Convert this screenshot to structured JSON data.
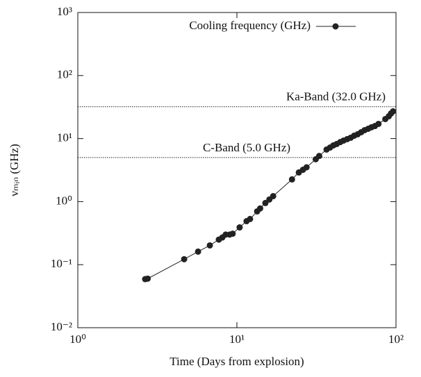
{
  "chart_data": {
    "type": "line",
    "markers": true,
    "xlabel": "Time (Days from explosion)",
    "ylabel": "νₘᵢₙ (GHz)",
    "xscale": "log",
    "yscale": "log",
    "xlim": [
      1,
      100
    ],
    "ylim": [
      0.01,
      1000
    ],
    "xticks": [
      {
        "value": 1,
        "label": "10⁰"
      },
      {
        "value": 10,
        "label": "10¹"
      },
      {
        "value": 100,
        "label": "10²"
      }
    ],
    "yticks": [
      {
        "value": 0.01,
        "label": "10⁻²"
      },
      {
        "value": 0.1,
        "label": "10⁻¹"
      },
      {
        "value": 1,
        "label": "10⁰"
      },
      {
        "value": 10,
        "label": "10¹"
      },
      {
        "value": 100,
        "label": "10²"
      },
      {
        "value": 1000,
        "label": "10³"
      }
    ],
    "legend": "top",
    "hlines": [
      {
        "value": 32.0,
        "label": "Ka-Band (32.0 GHz)"
      },
      {
        "value": 5.0,
        "label": "C-Band (5.0 GHz)"
      }
    ],
    "x": [
      2.65,
      2.75,
      4.66,
      5.7,
      6.76,
      7.7,
      8.1,
      8.5,
      9.0,
      9.4,
      10.4,
      11.5,
      12.1,
      13.4,
      14.0,
      15.1,
      16.0,
      16.9,
      22.2,
      24.5,
      26.0,
      27.4,
      31.3,
      32.9,
      36.6,
      38.5,
      40.4,
      42.4,
      44.6,
      46.8,
      49.3,
      51.9,
      54.6,
      57.4,
      60.4,
      63.5,
      66.8,
      70.1,
      73.7,
      77.6,
      85.7,
      90.1,
      93.0,
      95.8
    ],
    "series": [
      {
        "name": "Cooling frequency (GHz)",
        "color": "#222222",
        "values": [
          0.059,
          0.06,
          0.122,
          0.161,
          0.202,
          0.25,
          0.27,
          0.3,
          0.3,
          0.31,
          0.39,
          0.49,
          0.53,
          0.7,
          0.78,
          0.95,
          1.08,
          1.22,
          2.25,
          2.9,
          3.2,
          3.5,
          4.7,
          5.3,
          6.7,
          7.2,
          7.8,
          8.2,
          8.8,
          9.3,
          9.8,
          10.3,
          11.1,
          11.7,
          12.6,
          13.6,
          14.3,
          15.1,
          15.8,
          17.1,
          20.4,
          22.6,
          25.0,
          27.0
        ]
      }
    ]
  }
}
